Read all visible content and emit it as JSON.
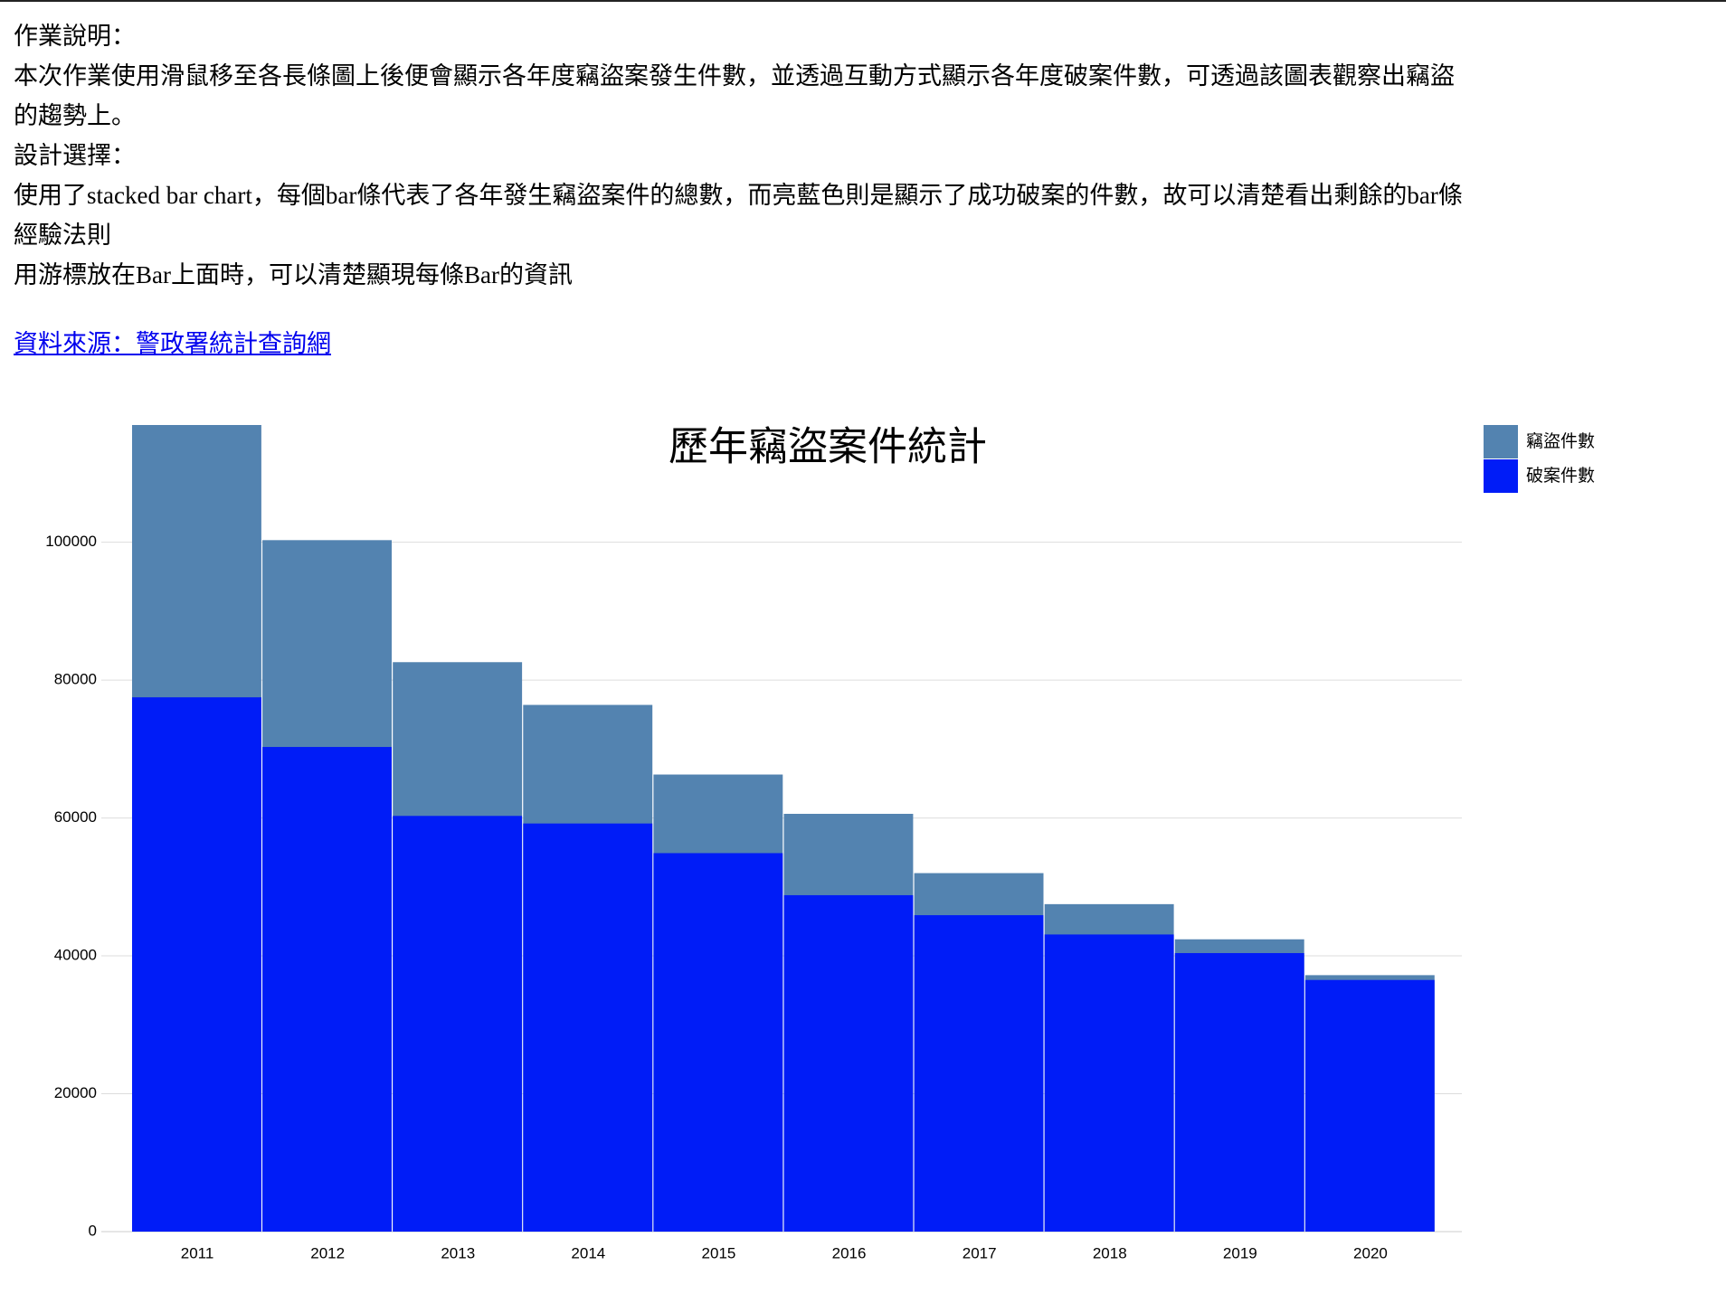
{
  "header": {
    "heading1": "作業說明：",
    "para1": [
      "本次作業使用滑鼠移至各長條圖上後便會顯示各年度竊盜案發生件數，並透過互動方式顯示各年度破案件數，可透過該圖表觀察出竊盜",
      "的趨勢上。"
    ],
    "heading2": "設計選擇：",
    "para2": [
      "使用了stacked bar chart，每個bar條代表了各年發生竊盜案件的總數，而亮藍色則是顯示了成功破案的件數，故可以清楚看出剩餘的bar條"
    ],
    "heading3": "經驗法則",
    "para3": "用游標放在Bar上面時，可以清楚顯現每條Bar的資訊",
    "link": "資料來源：警政署統計查詢網"
  },
  "chart_data": {
    "type": "bar",
    "title": "歷年竊盜案件統計",
    "categories": [
      "2011",
      "2012",
      "2013",
      "2014",
      "2015",
      "2016",
      "2017",
      "2018",
      "2019",
      "2020"
    ],
    "series": [
      {
        "name": "竊盜件數",
        "color": "#5383b0",
        "values": [
          117000,
          100300,
          82600,
          76400,
          66300,
          60600,
          52000,
          47500,
          42400,
          37200
        ]
      },
      {
        "name": "破案件數",
        "color": "#001cf7",
        "values": [
          77500,
          70300,
          60300,
          59200,
          54900,
          48800,
          45900,
          43100,
          40400,
          36500
        ]
      }
    ],
    "ylim": [
      0,
      117000
    ],
    "yticks": [
      0,
      20000,
      40000,
      60000,
      80000,
      100000
    ],
    "grid": true,
    "legend": "top-right"
  }
}
